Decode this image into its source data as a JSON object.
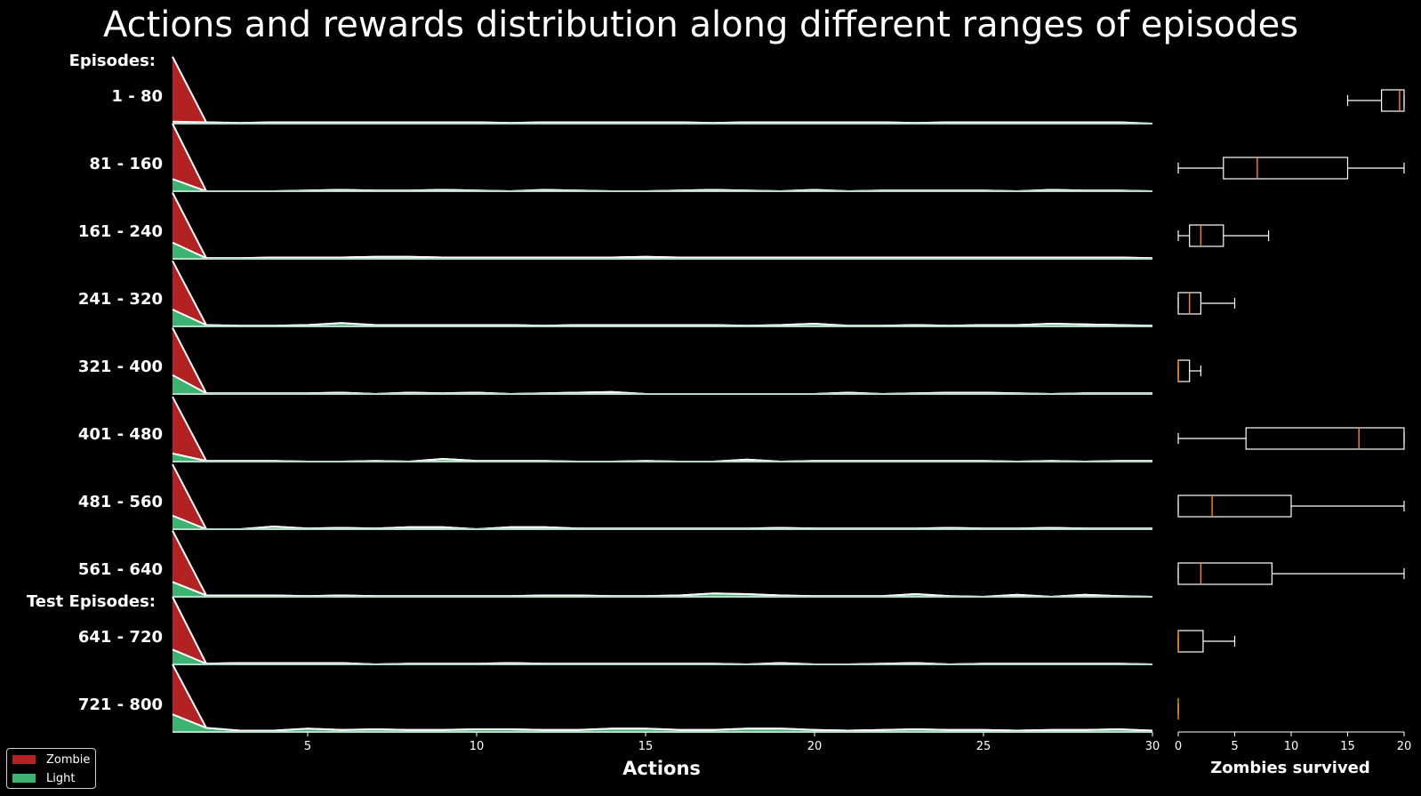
{
  "chart_data": {
    "type": "area",
    "title": "Actions and rewards distribution along different ranges of episodes",
    "section_labels": [
      "Episodes:",
      "Test Episodes:"
    ],
    "xlabel": "Actions",
    "xlim": [
      1,
      30
    ],
    "xticks": [
      5,
      10,
      15,
      20,
      25,
      30
    ],
    "colors": {
      "Zombie": "#b22222",
      "Light": "#3cb371",
      "line": "#ffffff",
      "background": "#000000",
      "median": "#ff8c00"
    },
    "legend": {
      "placement": "bottom-left",
      "entries": [
        "Zombie",
        "Light"
      ]
    },
    "series": [
      {
        "range": "1 - 80",
        "zombie": [
          0.96,
          0
        ],
        "light": [
          0.03,
          0.02,
          0.01,
          0.02,
          0.02,
          0.02,
          0.02,
          0.02,
          0.02,
          0.02,
          0.01,
          0.02,
          0.02,
          0.02,
          0.02,
          0.02,
          0.01,
          0.02,
          0.02,
          0.02,
          0.02,
          0.02,
          0.01,
          0.02,
          0.02,
          0.02,
          0.02,
          0.02,
          0.02,
          0.0
        ]
      },
      {
        "range": "81 - 160",
        "zombie": [
          0.82,
          0
        ],
        "light": [
          0.18,
          0.0,
          0.0,
          0.0,
          0.01,
          0.02,
          0.01,
          0.01,
          0.02,
          0.01,
          0.0,
          0.02,
          0.01,
          0.0,
          0.0,
          0.01,
          0.02,
          0.01,
          0.0,
          0.02,
          0.0,
          0.01,
          0.01,
          0.01,
          0.01,
          0.0,
          0.02,
          0.01,
          0.01,
          0.0
        ]
      },
      {
        "range": "161 - 240",
        "zombie": [
          0.74,
          0
        ],
        "light": [
          0.24,
          0.01,
          0.01,
          0.02,
          0.02,
          0.02,
          0.03,
          0.03,
          0.02,
          0.02,
          0.02,
          0.02,
          0.02,
          0.02,
          0.03,
          0.02,
          0.02,
          0.02,
          0.02,
          0.02,
          0.02,
          0.02,
          0.02,
          0.02,
          0.02,
          0.02,
          0.02,
          0.02,
          0.02,
          0.01
        ]
      },
      {
        "range": "241 - 320",
        "zombie": [
          0.72,
          0
        ],
        "light": [
          0.25,
          0.02,
          0.01,
          0.01,
          0.02,
          0.05,
          0.02,
          0.02,
          0.02,
          0.02,
          0.02,
          0.01,
          0.02,
          0.02,
          0.02,
          0.02,
          0.02,
          0.01,
          0.02,
          0.04,
          0.01,
          0.01,
          0.02,
          0.01,
          0.02,
          0.02,
          0.04,
          0.03,
          0.02,
          0.01
        ]
      },
      {
        "range": "321 - 400",
        "zombie": [
          0.7,
          0
        ],
        "light": [
          0.28,
          0.01,
          0.01,
          0.01,
          0.01,
          0.02,
          0.0,
          0.02,
          0.01,
          0.02,
          0.0,
          0.01,
          0.02,
          0.03,
          0.0,
          0.0,
          0.0,
          0.0,
          0.0,
          0.0,
          0.02,
          0.0,
          0.01,
          0.02,
          0.02,
          0.01,
          0.0,
          0.01,
          0.01,
          0.01
        ]
      },
      {
        "range": "401 - 480",
        "zombie": [
          0.84,
          0
        ],
        "light": [
          0.12,
          0.01,
          0.01,
          0.01,
          0.0,
          0.0,
          0.01,
          0.0,
          0.04,
          0.01,
          0.01,
          0.01,
          0.0,
          0.0,
          0.01,
          0.0,
          0.0,
          0.03,
          0.0,
          0.01,
          0.01,
          0.01,
          0.01,
          0.01,
          0.01,
          0.0,
          0.01,
          0.0,
          0.01,
          0.01
        ]
      },
      {
        "range": "481 - 560",
        "zombie": [
          0.76,
          0
        ],
        "light": [
          0.2,
          0.0,
          0.0,
          0.04,
          0.01,
          0.02,
          0.01,
          0.03,
          0.03,
          0.0,
          0.03,
          0.03,
          0.01,
          0.01,
          0.01,
          0.01,
          0.01,
          0.01,
          0.02,
          0.01,
          0.01,
          0.01,
          0.01,
          0.02,
          0.01,
          0.01,
          0.02,
          0.01,
          0.01,
          0.01
        ]
      },
      {
        "range": "561 - 640",
        "zombie": [
          0.76,
          0
        ],
        "light": [
          0.22,
          0.02,
          0.02,
          0.02,
          0.01,
          0.02,
          0.01,
          0.01,
          0.01,
          0.01,
          0.01,
          0.02,
          0.02,
          0.01,
          0.01,
          0.02,
          0.05,
          0.04,
          0.02,
          0.01,
          0.01,
          0.01,
          0.04,
          0.01,
          0.0,
          0.03,
          0.0,
          0.03,
          0.01,
          0.0
        ]
      },
      {
        "range": "641 - 720",
        "zombie": [
          0.78,
          0
        ],
        "light": [
          0.22,
          0.01,
          0.02,
          0.02,
          0.02,
          0.02,
          0.0,
          0.01,
          0.01,
          0.01,
          0.02,
          0.01,
          0.01,
          0.01,
          0.01,
          0.01,
          0.01,
          0.0,
          0.02,
          0.0,
          0.0,
          0.01,
          0.02,
          0.0,
          0.01,
          0.01,
          0.01,
          0.01,
          0.01,
          0.0
        ]
      },
      {
        "range": "721 - 800",
        "zombie": [
          0.74,
          0
        ],
        "light": [
          0.26,
          0.06,
          0.02,
          0.02,
          0.05,
          0.03,
          0.04,
          0.03,
          0.03,
          0.04,
          0.04,
          0.03,
          0.03,
          0.05,
          0.05,
          0.03,
          0.03,
          0.05,
          0.05,
          0.03,
          0.02,
          0.03,
          0.04,
          0.03,
          0.03,
          0.02,
          0.03,
          0.03,
          0.04,
          0.02
        ]
      }
    ],
    "boxplot": {
      "xlabel": "Zombies survived",
      "xlim": [
        0,
        20
      ],
      "xticks": [
        0,
        5,
        10,
        15,
        20
      ],
      "boxes": [
        {
          "range": "1 - 80",
          "whislo": 15,
          "q1": 18,
          "med": 19.6,
          "q3": 20,
          "whishi": 20
        },
        {
          "range": "81 - 160",
          "whislo": 0,
          "q1": 4,
          "med": 7,
          "q3": 15,
          "whishi": 20
        },
        {
          "range": "161 - 240",
          "whislo": 0,
          "q1": 1,
          "med": 2,
          "q3": 4,
          "whishi": 8
        },
        {
          "range": "241 - 320",
          "whislo": 0,
          "q1": 0,
          "med": 1,
          "q3": 2,
          "whishi": 5
        },
        {
          "range": "321 - 400",
          "whislo": 0,
          "q1": 0,
          "med": 0,
          "q3": 1,
          "whishi": 2
        },
        {
          "range": "401 - 480",
          "whislo": 0,
          "q1": 6,
          "med": 16,
          "q3": 20,
          "whishi": 20
        },
        {
          "range": "481 - 560",
          "whislo": 0,
          "q1": 0,
          "med": 3,
          "q3": 10,
          "whishi": 20
        },
        {
          "range": "561 - 640",
          "whislo": 0,
          "q1": 0,
          "med": 2,
          "q3": 8.3,
          "whishi": 20
        },
        {
          "range": "641 - 720",
          "whislo": 0,
          "q1": 0,
          "med": 0,
          "q3": 2.2,
          "whishi": 5
        },
        {
          "range": "721 - 800",
          "whislo": 0,
          "q1": 0,
          "med": 0,
          "q3": 0,
          "whishi": 0
        }
      ]
    }
  }
}
